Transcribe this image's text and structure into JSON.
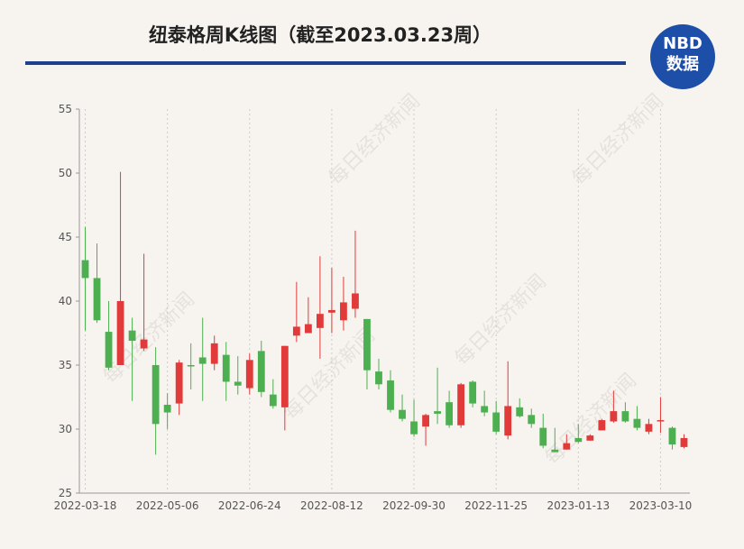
{
  "chart_data": {
    "type": "candlestick",
    "title": "纽泰格周K线图（截至2023.03.23周）",
    "logo": [
      "NBD",
      "数据"
    ],
    "watermark": "每日经济新闻",
    "categories": [
      "2022-03-18",
      null,
      null,
      null,
      null,
      null,
      null,
      "2022-05-06",
      null,
      null,
      null,
      null,
      null,
      null,
      "2022-06-24",
      null,
      null,
      null,
      null,
      null,
      null,
      "2022-08-12",
      null,
      null,
      null,
      null,
      null,
      null,
      "2022-09-30",
      null,
      null,
      null,
      null,
      null,
      null,
      "2022-11-25",
      null,
      null,
      null,
      null,
      null,
      null,
      "2023-01-13",
      null,
      null,
      null,
      null,
      null,
      null,
      "2023-03-10",
      null,
      null
    ],
    "open": [
      43.2,
      41.8,
      37.6,
      35.0,
      37.7,
      36.3,
      35.0,
      31.9,
      32.0,
      35.0,
      35.6,
      35.1,
      35.8,
      33.7,
      33.2,
      36.1,
      32.7,
      31.7,
      37.3,
      37.5,
      37.9,
      39.1,
      38.5,
      39.4,
      38.6,
      34.5,
      33.8,
      31.5,
      30.6,
      30.2,
      31.4,
      32.1,
      30.3,
      33.7,
      31.8,
      31.3,
      29.5,
      31.7,
      31.1,
      30.1,
      28.4,
      28.4,
      29.3,
      29.1,
      29.9,
      30.6,
      31.4,
      30.8,
      29.8,
      30.6,
      30.1,
      28.6
    ],
    "close": [
      41.8,
      38.5,
      34.8,
      40.0,
      36.9,
      37.0,
      30.4,
      31.3,
      35.2,
      34.9,
      35.1,
      36.7,
      33.7,
      33.4,
      35.4,
      32.9,
      31.8,
      36.5,
      38.0,
      38.2,
      39.0,
      39.3,
      39.9,
      40.6,
      34.6,
      33.5,
      31.5,
      30.8,
      29.6,
      31.1,
      31.2,
      30.3,
      33.5,
      32.0,
      31.3,
      29.8,
      31.8,
      31.0,
      30.4,
      28.7,
      28.2,
      28.9,
      29.0,
      29.5,
      30.7,
      31.4,
      30.6,
      30.1,
      30.4,
      30.7,
      28.8,
      29.3
    ],
    "high": [
      45.8,
      44.5,
      40.0,
      50.1,
      38.7,
      43.7,
      36.4,
      32.8,
      35.4,
      36.7,
      38.7,
      37.3,
      36.8,
      35.7,
      35.9,
      36.9,
      33.9,
      36.5,
      41.5,
      40.3,
      43.5,
      42.6,
      41.9,
      45.5,
      38.6,
      35.5,
      34.6,
      32.7,
      32.3,
      31.2,
      34.8,
      33.0,
      33.6,
      33.8,
      33.0,
      32.2,
      35.3,
      32.4,
      31.6,
      31.2,
      30.1,
      29.6,
      30.4,
      29.6,
      30.8,
      33.0,
      32.1,
      31.8,
      30.8,
      32.5,
      30.2,
      29.6
    ],
    "low": [
      37.7,
      38.3,
      34.6,
      35.0,
      32.2,
      36.1,
      28.0,
      30.0,
      31.1,
      33.1,
      32.2,
      34.6,
      32.2,
      32.7,
      32.7,
      32.5,
      31.6,
      29.9,
      36.8,
      37.5,
      35.5,
      37.5,
      37.7,
      38.7,
      33.1,
      33.1,
      31.3,
      30.6,
      29.4,
      28.7,
      30.4,
      30.1,
      30.1,
      31.7,
      31.0,
      29.6,
      29.2,
      30.9,
      30.1,
      28.5,
      28.2,
      28.4,
      28.9,
      29.1,
      29.9,
      30.5,
      30.5,
      29.9,
      29.6,
      29.7,
      28.4,
      28.5
    ],
    "up_color": "#e03a3a",
    "down_color": "#4caf50",
    "ylim": [
      25,
      55
    ],
    "yticks": [
      25,
      30,
      35,
      40,
      45,
      50,
      55
    ],
    "grid": "x"
  }
}
